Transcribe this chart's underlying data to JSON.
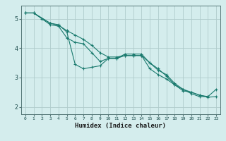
{
  "xlabel": "Humidex (Indice chaleur)",
  "background_color": "#d4eded",
  "grid_color": "#b0cccc",
  "line_color": "#1a7a6e",
  "xlim": [
    -0.5,
    23.5
  ],
  "ylim": [
    1.75,
    5.45
  ],
  "yticks": [
    2,
    3,
    4,
    5
  ],
  "xticks": [
    0,
    1,
    2,
    3,
    4,
    5,
    6,
    7,
    8,
    9,
    10,
    11,
    12,
    13,
    14,
    15,
    16,
    17,
    18,
    19,
    20,
    21,
    22,
    23
  ],
  "series": [
    {
      "x": [
        0,
        1,
        2,
        3,
        4,
        5,
        6,
        7,
        8,
        9,
        10,
        11,
        12,
        13,
        14,
        15,
        16,
        17,
        18,
        19,
        20,
        21,
        22
      ],
      "y": [
        5.2,
        5.2,
        5.0,
        4.8,
        4.75,
        4.35,
        4.2,
        4.15,
        3.85,
        3.55,
        3.65,
        3.65,
        3.75,
        3.75,
        3.75,
        3.3,
        3.1,
        2.95,
        2.75,
        2.6,
        2.45,
        2.35,
        2.35
      ]
    },
    {
      "x": [
        0,
        1,
        3,
        4,
        5,
        6,
        7,
        8,
        9,
        10,
        11,
        12,
        13,
        14,
        15,
        16,
        17,
        18,
        19,
        20,
        21,
        22,
        23
      ],
      "y": [
        5.2,
        5.2,
        4.85,
        4.8,
        4.55,
        3.45,
        3.3,
        3.35,
        3.4,
        3.65,
        3.65,
        3.8,
        3.8,
        3.8,
        3.5,
        3.3,
        3.05,
        2.75,
        2.55,
        2.5,
        2.4,
        2.35,
        2.6
      ]
    },
    {
      "x": [
        0,
        1,
        3,
        4,
        5,
        6,
        7,
        8,
        9,
        10,
        11,
        12,
        13,
        14,
        15,
        16,
        17,
        18,
        19,
        20,
        21,
        22,
        23
      ],
      "y": [
        5.2,
        5.2,
        4.85,
        4.78,
        4.6,
        4.45,
        4.3,
        4.1,
        3.85,
        3.7,
        3.7,
        3.75,
        3.75,
        3.75,
        3.5,
        3.25,
        3.1,
        2.8,
        2.6,
        2.5,
        2.4,
        2.33,
        2.35
      ]
    }
  ]
}
